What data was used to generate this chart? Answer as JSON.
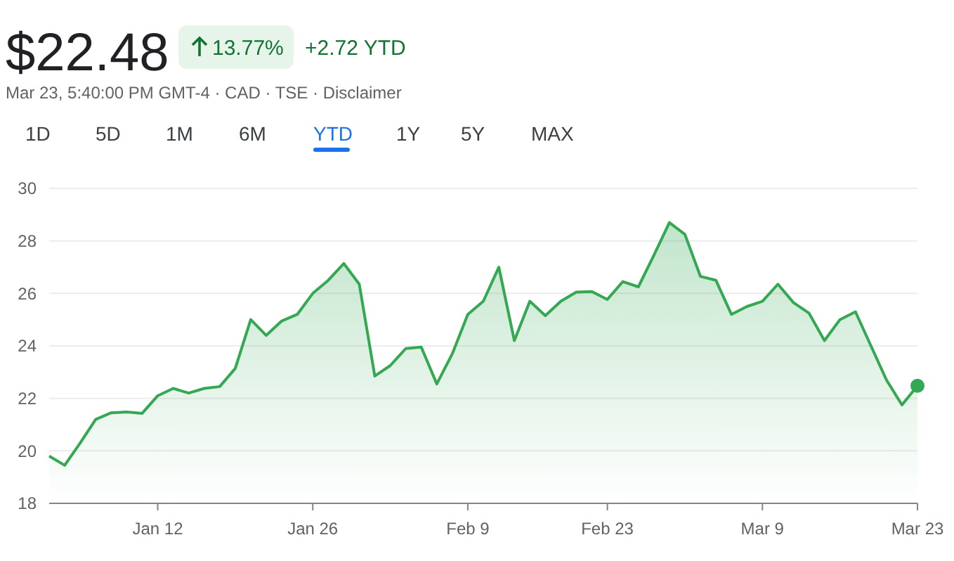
{
  "chart_data": {
    "type": "area",
    "title": "$22.48",
    "subtitle": "Mar 23, 5:40:00 PM GMT-4 · CAD · TSE · Disclaimer",
    "annotations": [
      "13.77%",
      "+2.72 YTD",
      "1D",
      "5D",
      "1M",
      "6M",
      "YTD",
      "1Y",
      "5Y",
      "MAX"
    ],
    "categories": [
      null,
      null,
      null,
      null,
      null,
      null,
      null,
      "Jan 12",
      null,
      null,
      null,
      null,
      null,
      null,
      null,
      null,
      null,
      "Jan 26",
      null,
      null,
      null,
      null,
      null,
      null,
      null,
      null,
      null,
      "Feb 9",
      null,
      null,
      null,
      null,
      null,
      null,
      null,
      null,
      "Feb 23",
      null,
      null,
      null,
      null,
      null,
      null,
      null,
      null,
      null,
      "Mar 9",
      null,
      null,
      null,
      null,
      null,
      null,
      null,
      null,
      null,
      "Mar 23"
    ],
    "series": [
      {
        "color": "#34a853",
        "values": [
          19.8,
          19.45,
          20.3,
          21.2,
          21.45,
          21.48,
          21.43,
          22.1,
          22.38,
          22.2,
          22.38,
          22.45,
          23.14,
          25.0,
          24.4,
          24.95,
          25.2,
          26.0,
          26.5,
          27.14,
          26.35,
          22.85,
          23.25,
          23.9,
          23.95,
          22.55,
          23.7,
          25.2,
          25.7,
          27.0,
          24.2,
          25.7,
          25.15,
          25.7,
          26.05,
          26.07,
          25.77,
          26.45,
          26.25,
          27.45,
          28.7,
          28.25,
          26.65,
          26.5,
          25.2,
          25.5,
          25.7,
          26.35,
          25.65,
          25.25,
          24.2,
          25.0,
          25.3,
          24.0,
          22.7,
          21.75,
          22.48
        ]
      }
    ],
    "ylim": [
      18,
      30
    ],
    "yticks": [
      18,
      20,
      22,
      24,
      26,
      28,
      30
    ],
    "grid": "y"
  }
}
